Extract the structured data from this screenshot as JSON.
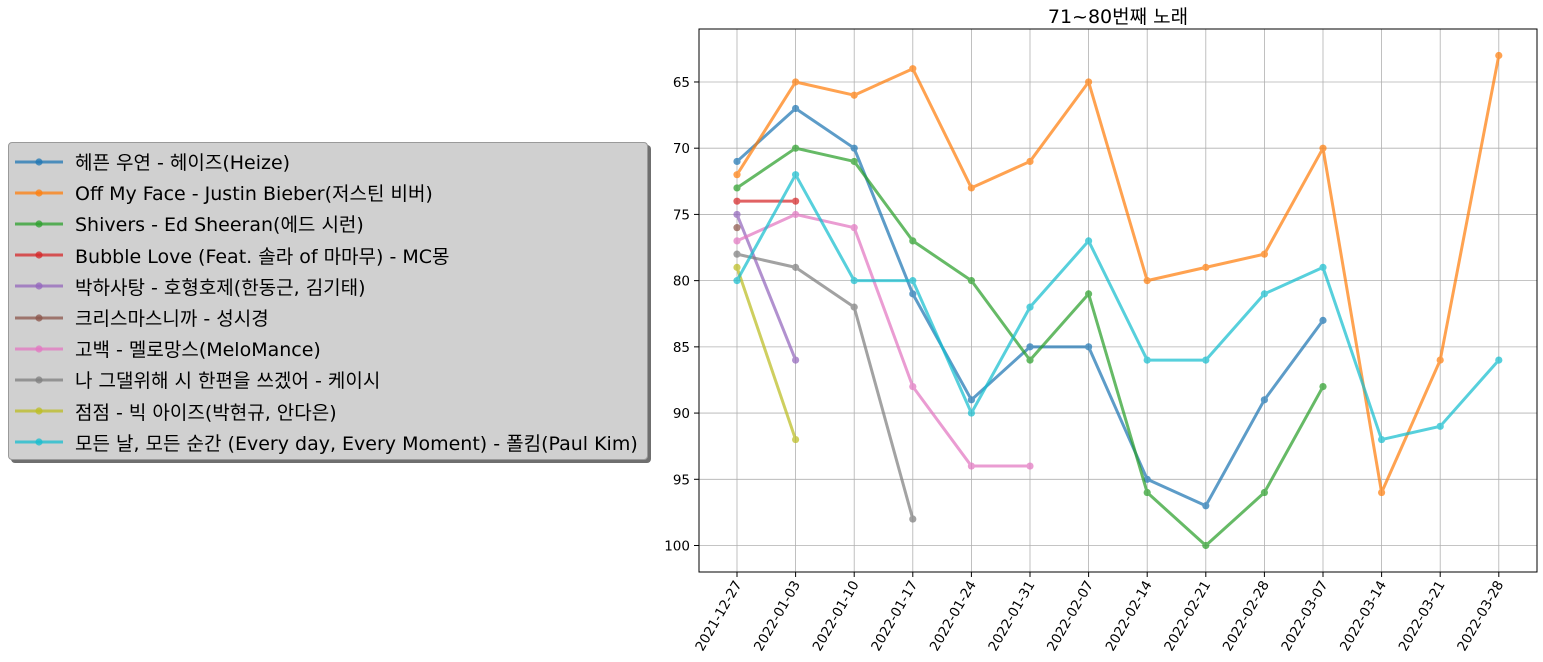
{
  "chart_data": {
    "type": "line",
    "title": "71~80번째 노래",
    "xlabel": "",
    "ylabel": "",
    "y_inverted": true,
    "ylim": [
      102,
      61
    ],
    "yticks": [
      65,
      70,
      75,
      80,
      85,
      90,
      95,
      100
    ],
    "grid": true,
    "legend_position": "left-outside",
    "x": [
      "2021-12-27",
      "2022-01-03",
      "2022-01-10",
      "2022-01-17",
      "2022-01-24",
      "2022-01-31",
      "2022-02-07",
      "2022-02-14",
      "2022-02-21",
      "2022-02-28",
      "2022-03-07",
      "2022-03-14",
      "2022-03-21",
      "2022-03-28"
    ],
    "series": [
      {
        "name": "헤픈 우연 - 헤이즈(Heize)",
        "color": "#1f77b4",
        "values": [
          71,
          67,
          70,
          81,
          89,
          85,
          85,
          95,
          97,
          89,
          83,
          null,
          null,
          null
        ]
      },
      {
        "name": "Off My Face - Justin Bieber(저스틴 비버)",
        "color": "#ff7f0e",
        "values": [
          72,
          65,
          66,
          64,
          73,
          71,
          65,
          80,
          79,
          78,
          70,
          96,
          86,
          63
        ]
      },
      {
        "name": "Shivers - Ed Sheeran(에드 시런)",
        "color": "#2ca02c",
        "values": [
          73,
          70,
          71,
          77,
          80,
          86,
          81,
          96,
          100,
          96,
          88,
          null,
          null,
          null
        ]
      },
      {
        "name": "Bubble Love (Feat. 솔라 of 마마무) - MC몽",
        "color": "#d62728",
        "values": [
          74,
          74,
          null,
          null,
          null,
          null,
          null,
          null,
          null,
          null,
          null,
          null,
          null,
          null
        ]
      },
      {
        "name": "박하사탕 - 호형호제(한동근, 김기태)",
        "color": "#9467bd",
        "values": [
          75,
          86,
          null,
          null,
          null,
          null,
          null,
          null,
          null,
          null,
          null,
          null,
          null,
          null
        ]
      },
      {
        "name": "크리스마스니까 - 성시경",
        "color": "#8c564b",
        "values": [
          76,
          null,
          null,
          null,
          null,
          null,
          null,
          null,
          null,
          null,
          null,
          null,
          null,
          null
        ]
      },
      {
        "name": "고백 - 멜로망스(MeloMance)",
        "color": "#e377c2",
        "values": [
          77,
          75,
          76,
          88,
          94,
          94,
          null,
          null,
          null,
          null,
          null,
          null,
          null,
          null
        ]
      },
      {
        "name": "나 그댈위해 시 한편을 쓰겠어 - 케이시",
        "color": "#7f7f7f",
        "values": [
          78,
          79,
          82,
          98,
          null,
          null,
          null,
          null,
          null,
          null,
          null,
          null,
          null,
          null
        ]
      },
      {
        "name": "점점 - 빅 아이즈(박현규, 안다은)",
        "color": "#bcbd22",
        "values": [
          79,
          92,
          null,
          null,
          null,
          null,
          null,
          null,
          null,
          null,
          null,
          null,
          null,
          null
        ]
      },
      {
        "name": "모든 날, 모든 순간 (Every day, Every Moment) - 폴킴(Paul Kim)",
        "color": "#17becf",
        "values": [
          80,
          72,
          80,
          80,
          90,
          82,
          77,
          86,
          86,
          81,
          79,
          92,
          91,
          86
        ]
      }
    ]
  }
}
